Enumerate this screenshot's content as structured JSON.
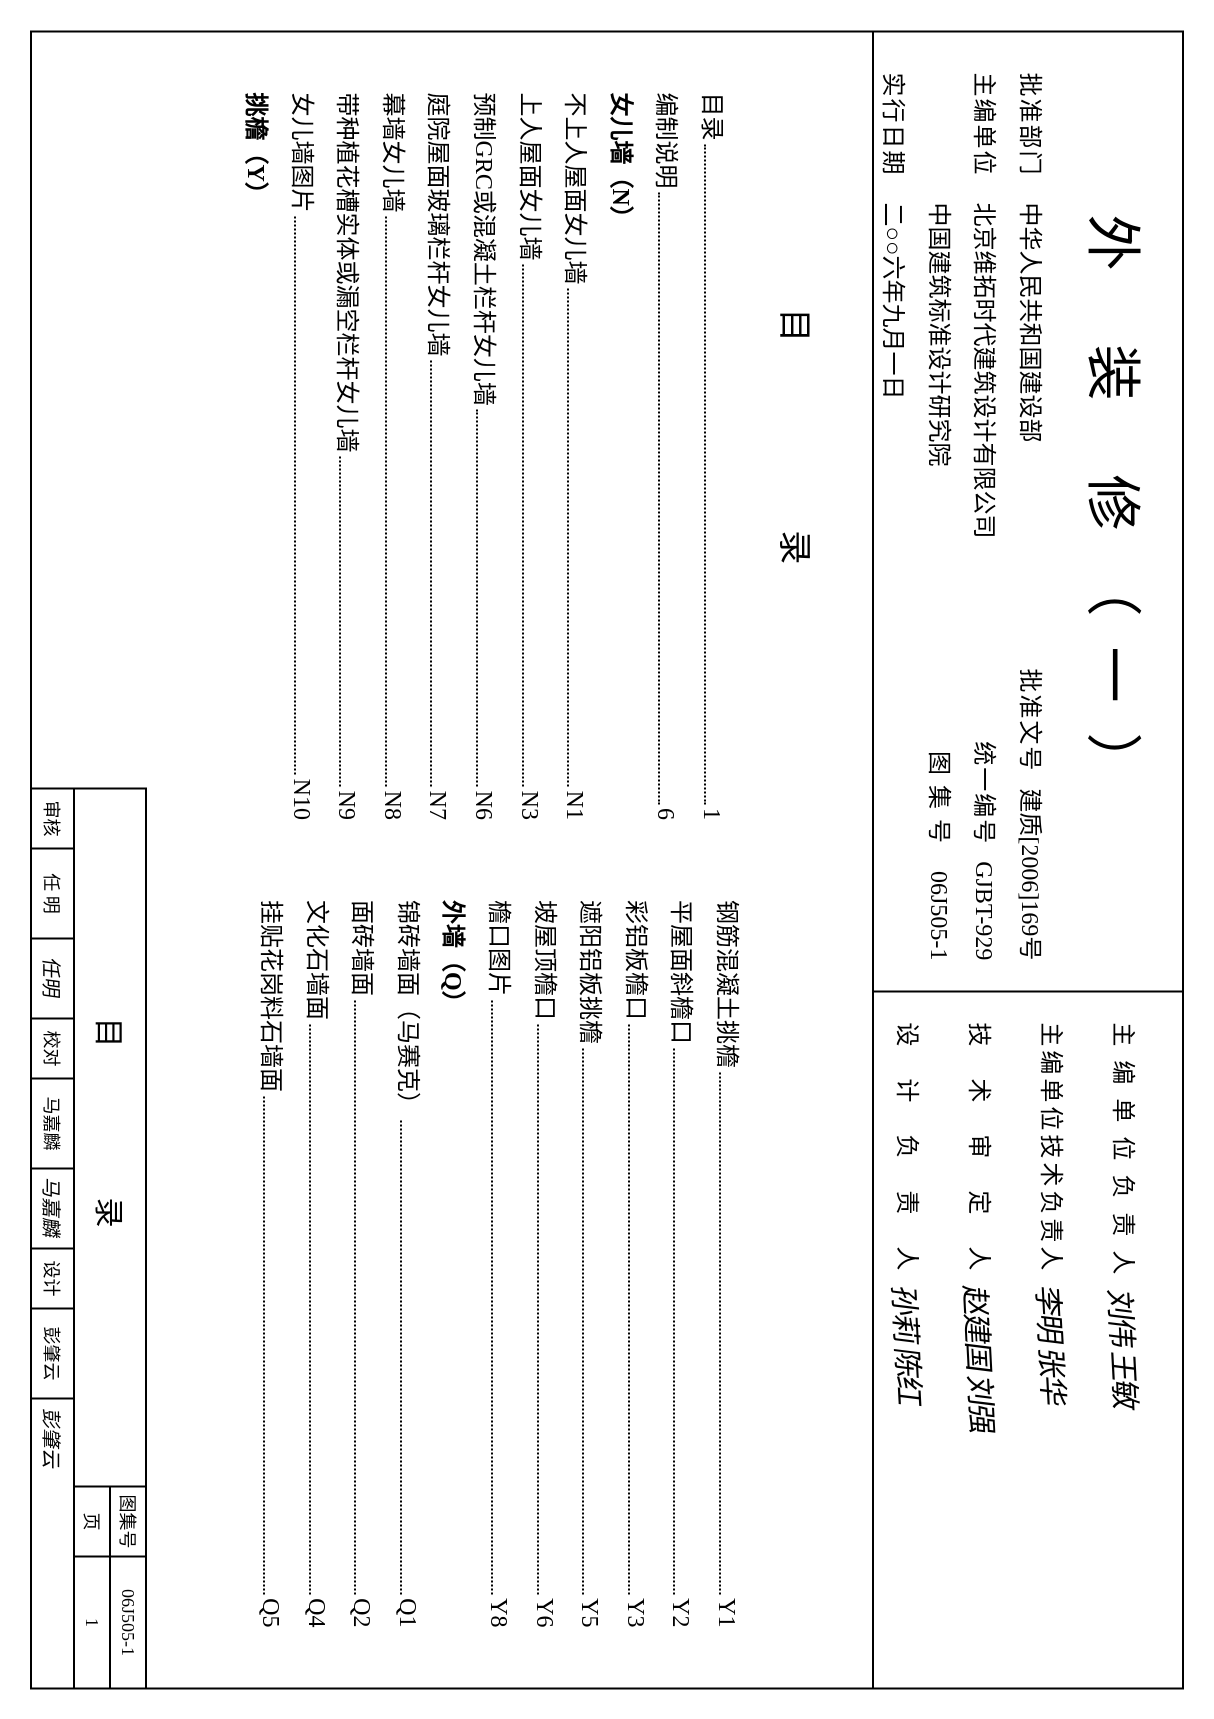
{
  "title": "外 装 修（一）",
  "header_left": {
    "rows": [
      {
        "label": "批准部门",
        "value": "中华人民共和国建设部",
        "r_label": "批准文号",
        "r_value": "建质[2006]169号"
      },
      {
        "label": "主编单位",
        "value": "北京维拓时代建筑设计有限公司",
        "r_label": "统一编号",
        "r_value": "GJBT-929"
      },
      {
        "label": "",
        "value": "中国建筑标准设计研究院",
        "r_label": "图 集 号",
        "r_value": "06J505-1"
      },
      {
        "label": "实行日期",
        "value": "二○○六年九月一日",
        "r_label": "",
        "r_value": ""
      }
    ]
  },
  "header_right": {
    "rows": [
      {
        "label": "主 编 单 位 负 责 人",
        "sig": "刘伟 王敏"
      },
      {
        "label": "主编单位技术负责人",
        "sig": "李明 张华"
      },
      {
        "label": "技　术　审　定　人",
        "sig": "赵建国 刘强"
      },
      {
        "label": "设　计　负　责　人",
        "sig": "孙莉 陈红"
      }
    ]
  },
  "toc_heading": "目　　录",
  "toc_left": [
    {
      "text": "目录",
      "page": "1",
      "bold": false,
      "dots": true
    },
    {
      "text": "编制说明",
      "page": "6",
      "bold": false,
      "dots": true
    },
    {
      "text": "女儿墙（N）",
      "page": "",
      "bold": true,
      "dots": false
    },
    {
      "text": "不上人屋面女儿墙",
      "page": "N1",
      "bold": false,
      "dots": true
    },
    {
      "text": "上人屋面女儿墙",
      "page": "N3",
      "bold": false,
      "dots": true
    },
    {
      "text": "预制GRC或混凝土栏杆女儿墙",
      "page": "N6",
      "bold": false,
      "dots": true
    },
    {
      "text": "庭院屋面玻璃栏杆女儿墙",
      "page": "N7",
      "bold": false,
      "dots": true
    },
    {
      "text": "幕墙女儿墙",
      "page": "N8",
      "bold": false,
      "dots": true
    },
    {
      "text": "带种植花槽实体或漏空栏杆女儿墙",
      "page": "N9",
      "bold": false,
      "dots": true
    },
    {
      "text": "女儿墙图片",
      "page": "N10",
      "bold": false,
      "dots": true
    },
    {
      "text": "挑檐（Y）",
      "page": "",
      "bold": true,
      "dots": false
    }
  ],
  "toc_right": [
    {
      "text": "钢筋混凝土挑檐",
      "page": "Y1",
      "bold": false,
      "dots": true
    },
    {
      "text": "平屋面斜檐口",
      "page": "Y2",
      "bold": false,
      "dots": true
    },
    {
      "text": "彩铝板檐口",
      "page": "Y3",
      "bold": false,
      "dots": true
    },
    {
      "text": "遮阳铝板挑檐",
      "page": "Y5",
      "bold": false,
      "dots": true
    },
    {
      "text": "坡屋顶檐口",
      "page": "Y6",
      "bold": false,
      "dots": true
    },
    {
      "text": "檐口图片",
      "page": "Y8",
      "bold": false,
      "dots": true
    },
    {
      "text": "外墙（Q）",
      "page": "",
      "bold": true,
      "dots": false
    },
    {
      "text": "锦砖墙面（马赛克）",
      "page": "Q1",
      "bold": false,
      "dots": true
    },
    {
      "text": "面砖墙面",
      "page": "Q2",
      "bold": false,
      "dots": true
    },
    {
      "text": "文化石墙面",
      "page": "Q4",
      "bold": false,
      "dots": true
    },
    {
      "text": "挂贴花岗料石墙面",
      "page": "Q5",
      "bold": false,
      "dots": true
    }
  ],
  "footer": {
    "title": "目　　录",
    "tuji_label": "图集号",
    "tuji_val": "06J505-1",
    "page_label": "页",
    "page_val": "1",
    "cells": [
      {
        "label": "审核",
        "val": "任 明"
      },
      {
        "label_only": false,
        "sig": "任明"
      },
      {
        "label": "校对",
        "val": "马嘉麟"
      },
      {
        "label_only": false,
        "sig": "马嘉麟"
      },
      {
        "label": "设计",
        "val": "彭肇云"
      },
      {
        "label_only": false,
        "sig": "彭肇云"
      }
    ]
  }
}
